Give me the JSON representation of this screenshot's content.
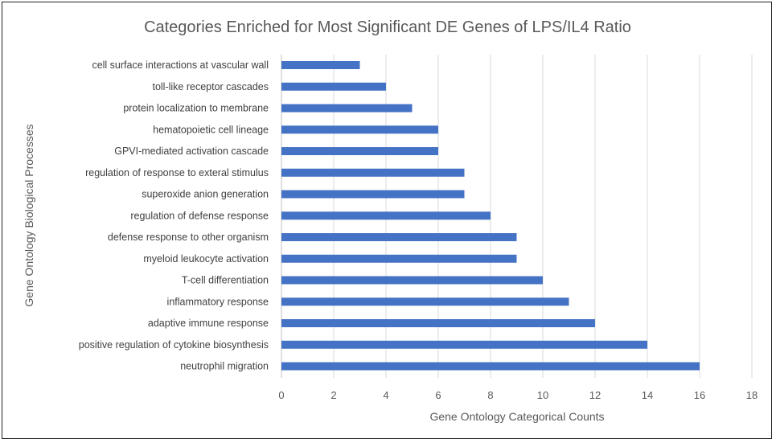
{
  "chart_data": {
    "type": "bar",
    "orientation": "horizontal",
    "title": "Categories Enriched for Most Significant DE Genes of LPS/IL4 Ratio",
    "xlabel": "Gene Ontology Categorical Counts",
    "ylabel": "Gene Ontology Biological Processes",
    "xlim": [
      0,
      18
    ],
    "xticks": [
      "0",
      "2",
      "4",
      "6",
      "8",
      "10",
      "12",
      "14",
      "16",
      "18"
    ],
    "grid": true,
    "legend": "none",
    "bar_color": "#4472c4",
    "categories": [
      "cell surface interactions at vascular wall",
      "toll-like receptor cascades",
      "protein localization to membrane",
      "hematopoietic cell lineage",
      "GPVI-mediated activation cascade",
      "regulation of response to exteral stimulus",
      "superoxide anion generation",
      "regulation of defense response",
      "defense response to other organism",
      "myeloid leukocyte activation",
      "T-cell differentiation",
      "inflammatory response",
      "adaptive immune response",
      "positive regulation of cytokine biosynthesis",
      "neutrophil migration"
    ],
    "values": [
      3,
      4,
      5,
      6,
      6,
      7,
      7,
      8,
      9,
      9,
      10,
      11,
      12,
      14,
      16
    ]
  }
}
